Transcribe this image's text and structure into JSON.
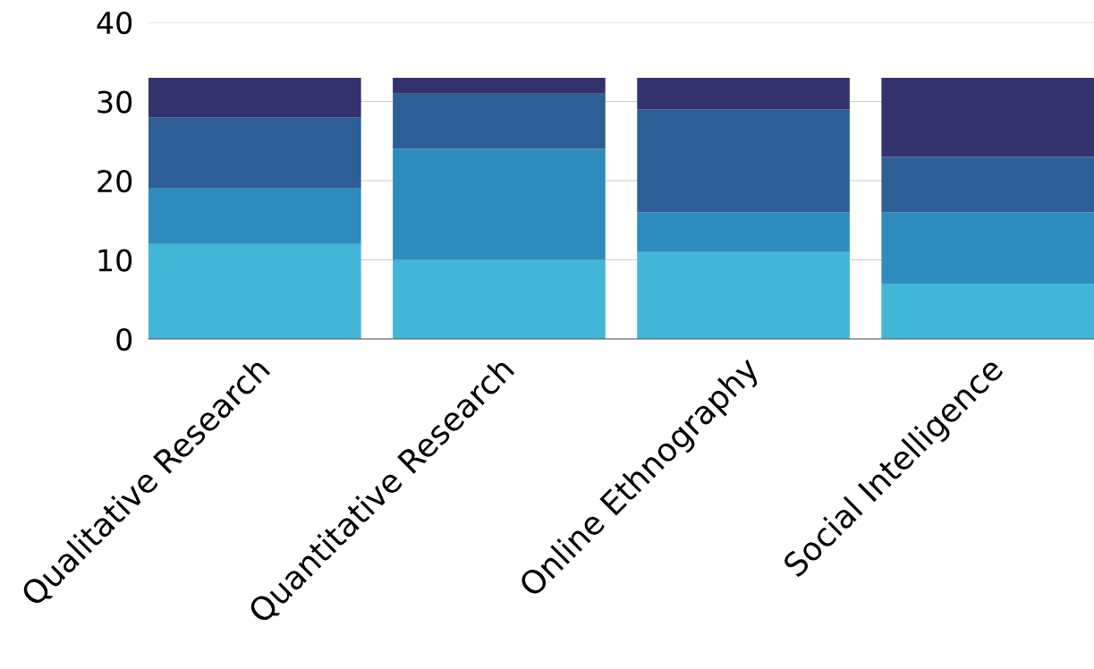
{
  "chart_data": {
    "type": "bar",
    "stacked": true,
    "categories": [
      "Qualitative Research",
      "Quantitative Research",
      "Online Ethnography",
      "Social Intelligence"
    ],
    "series": [
      {
        "color": "#41b6d6",
        "values": [
          12,
          10,
          11,
          7
        ]
      },
      {
        "color": "#2d8bbd",
        "values": [
          7,
          14,
          5,
          9
        ]
      },
      {
        "color": "#2e5e96",
        "values": [
          9,
          7,
          13,
          7
        ]
      },
      {
        "color": "#32336c",
        "values": [
          5,
          2,
          4,
          10
        ]
      }
    ],
    "ylim": [
      0,
      40
    ],
    "yticks": [
      0,
      10,
      20,
      30,
      40
    ],
    "grid": "y"
  }
}
